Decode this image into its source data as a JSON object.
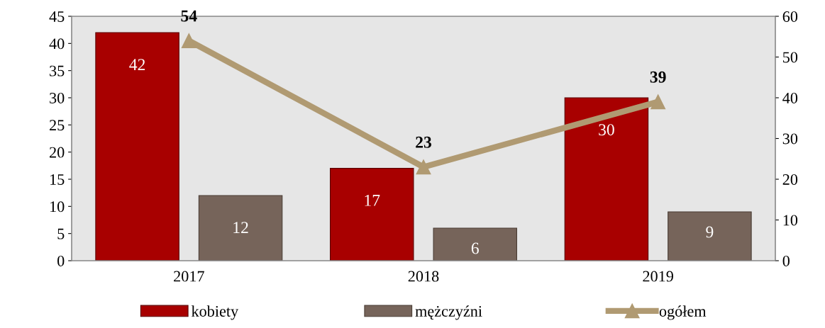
{
  "chart_data": {
    "type": "bar",
    "categories": [
      "2017",
      "2018",
      "2019"
    ],
    "series": [
      {
        "name": "kobiety",
        "color": "#a80000",
        "values": [
          42,
          17,
          30
        ]
      },
      {
        "name": "mężczyźni",
        "color": "#76645a",
        "values": [
          12,
          6,
          9
        ]
      },
      {
        "name": "ogółem",
        "color": "#b09a72",
        "values": [
          54,
          23,
          39
        ],
        "type": "line",
        "axis": "y2",
        "marker": "triangle"
      }
    ],
    "ylim": [
      0,
      45
    ],
    "yticks": [
      0,
      5,
      10,
      15,
      20,
      25,
      30,
      35,
      40,
      45
    ],
    "y2lim": [
      0,
      60
    ],
    "y2ticks": [
      0,
      10,
      20,
      30,
      40,
      50,
      60
    ],
    "data_labels": true,
    "grid": false,
    "legend": "bottom"
  }
}
